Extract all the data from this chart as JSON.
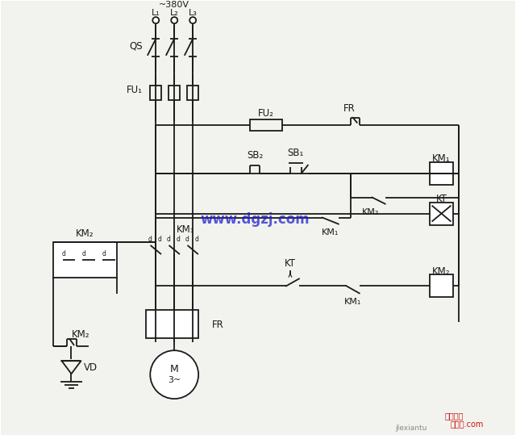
{
  "bg": "#f2f2ee",
  "lc": "#1a1a1a",
  "blue": "#1a1acc",
  "red": "#cc1111",
  "gray": "#888888",
  "v380": "~380V",
  "L1": "L₁",
  "L2": "L₂",
  "L3": "L₃",
  "QS": "QS",
  "FU1": "FU₁",
  "FU2": "FU₂",
  "FR": "FR",
  "SB1": "SB₁",
  "SB2": "SB₂",
  "KM1": "KM₁",
  "KM2": "KM₂",
  "KT": "KT",
  "VD": "VD",
  "M": "M",
  "M3": "3~",
  "wm": "www.dgzj.com",
  "eh": "电工之家",
  "jxt": "接线图.com",
  "jlx": "jlexiantu"
}
